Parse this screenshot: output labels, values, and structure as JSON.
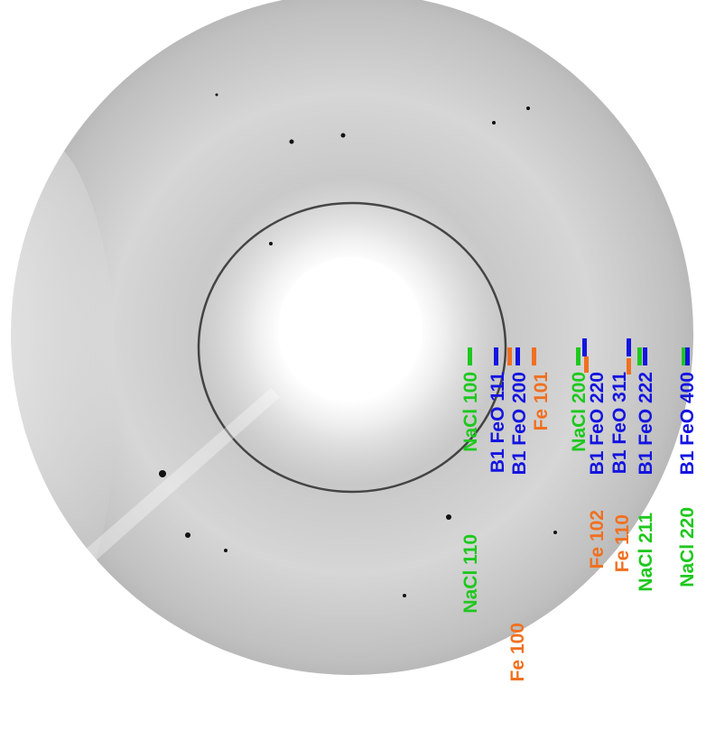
{
  "annotations": [
    {
      "text": "NaCl 100",
      "color": "#1ec81e"
    },
    {
      "text": "B1 FeO 111",
      "color": "#1414e0"
    },
    {
      "text": "B1 FeO 200",
      "color": "#1414e0"
    },
    {
      "text": "Fe 101",
      "color": "#f07020"
    },
    {
      "text": "NaCl 200",
      "color": "#1ec81e"
    },
    {
      "text": "B1 FeO 220",
      "color": "#1414e0"
    },
    {
      "text": "B1 FeO 311",
      "color": "#1414e0"
    },
    {
      "text": "B1 FeO 222",
      "color": "#1414e0"
    },
    {
      "text": "B1 FeO 400",
      "color": "#1414e0"
    },
    {
      "text": "NaCl 110",
      "color": "#1ec81e"
    },
    {
      "text": "Fe 100",
      "color": "#f07020"
    },
    {
      "text": "Fe 102",
      "color": "#f07020"
    },
    {
      "text": "Fe 110",
      "color": "#f07020"
    },
    {
      "text": "NaCl 211",
      "color": "#1ec81e"
    },
    {
      "text": "NaCl 220",
      "color": "#1ec81e"
    }
  ]
}
